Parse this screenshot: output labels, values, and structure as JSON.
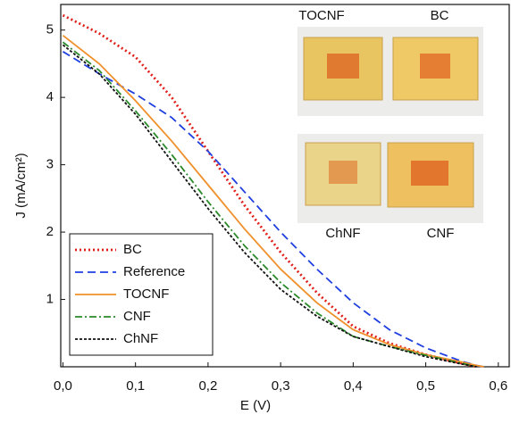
{
  "chart_data": {
    "type": "line",
    "x_label": "E (V)",
    "y_label": "J (mA/cm²)",
    "x": [
      0,
      0.05,
      0.1,
      0.15,
      0.2,
      0.25,
      0.3,
      0.35,
      0.4,
      0.45,
      0.5,
      0.55,
      0.57,
      0.58
    ],
    "series": [
      {
        "name": "BC",
        "color": "#e0201b",
        "style": "dotted",
        "values": [
          5.22,
          4.95,
          4.6,
          4.0,
          3.2,
          2.4,
          1.7,
          1.1,
          0.6,
          0.35,
          0.18,
          0.05,
          0,
          null
        ]
      },
      {
        "name": "Reference",
        "color": "#1f3fe0",
        "style": "dashed",
        "values": [
          4.68,
          4.35,
          4.05,
          3.7,
          3.2,
          2.6,
          2.0,
          1.45,
          0.95,
          0.55,
          0.28,
          0.08,
          0.02,
          0
        ]
      },
      {
        "name": "TOCNF",
        "color": "#f0902a",
        "style": "solid",
        "values": [
          4.92,
          4.5,
          3.95,
          3.35,
          2.7,
          2.05,
          1.45,
          0.95,
          0.55,
          0.33,
          0.18,
          0.07,
          0.02,
          0
        ]
      },
      {
        "name": "CNF",
        "color": "#2a8a2a",
        "style": "dashdot",
        "values": [
          4.82,
          4.4,
          3.8,
          3.15,
          2.45,
          1.8,
          1.25,
          0.8,
          0.45,
          0.3,
          0.17,
          0.05,
          0,
          null
        ]
      },
      {
        "name": "ChNF",
        "color": "#111111",
        "style": "shortdash",
        "values": [
          4.78,
          4.35,
          3.75,
          3.05,
          2.35,
          1.7,
          1.15,
          0.75,
          0.45,
          0.3,
          0.15,
          0.04,
          0,
          null
        ]
      }
    ],
    "xlim": [
      -0.003,
      0.615
    ],
    "ylim": [
      0,
      5.38
    ],
    "xticks": [
      {
        "value": 0,
        "label": "0,0"
      },
      {
        "value": 0.1,
        "label": "0,1"
      },
      {
        "value": 0.2,
        "label": "0,2"
      },
      {
        "value": 0.3,
        "label": "0,3"
      },
      {
        "value": 0.4,
        "label": "0,4"
      },
      {
        "value": 0.5,
        "label": "0,5"
      },
      {
        "value": 0.6,
        "label": "0,6"
      }
    ],
    "yticks": [
      1,
      2,
      3,
      4,
      5
    ],
    "legend": "lower-left",
    "annotations": [
      "TOCNF",
      "BC",
      "ChNF",
      "CNF"
    ]
  }
}
